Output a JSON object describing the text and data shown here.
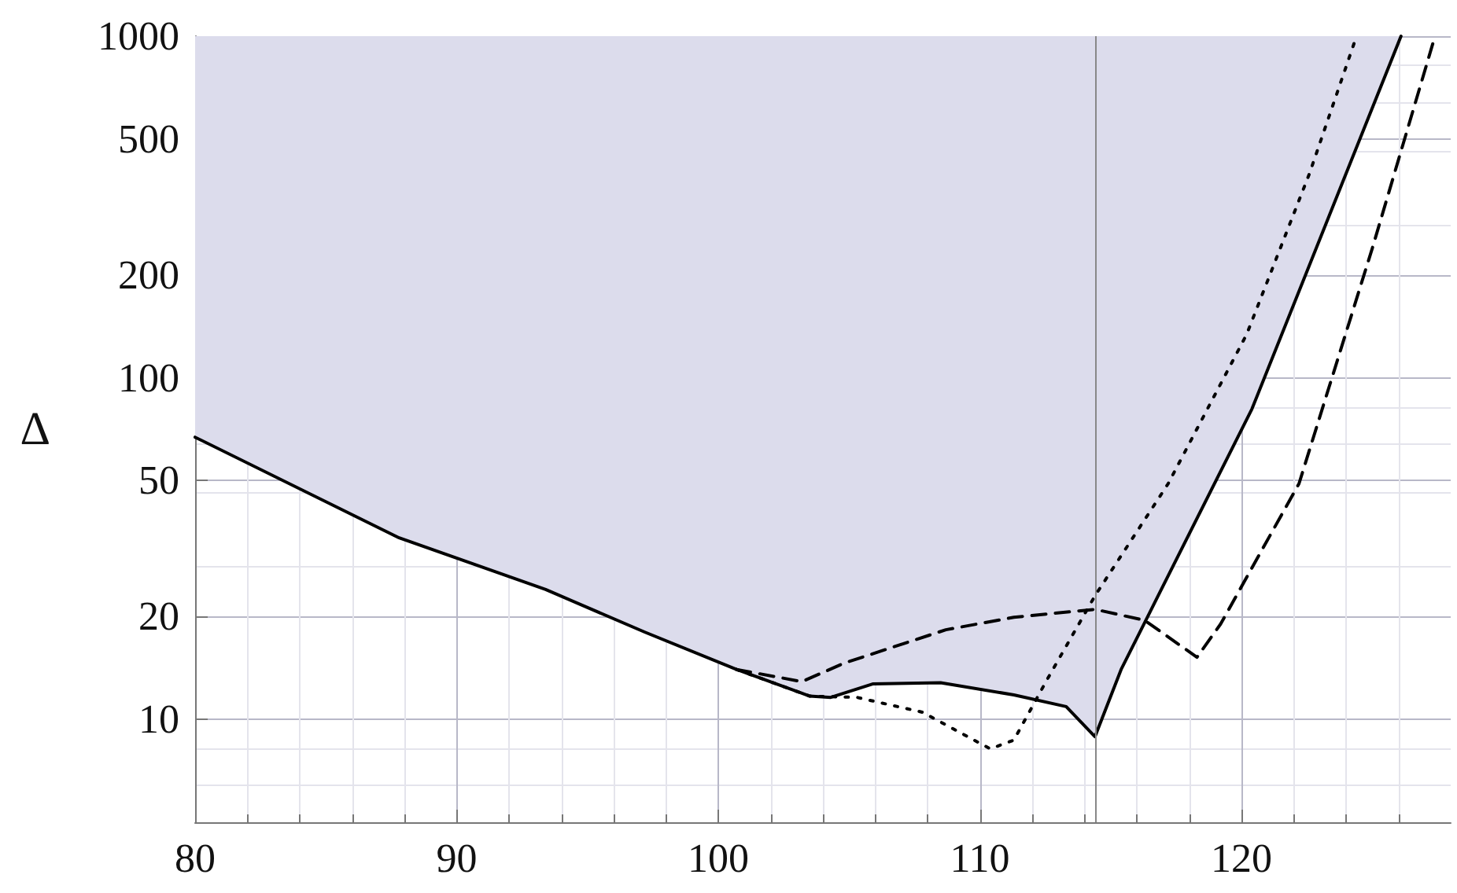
{
  "chart_data": {
    "type": "line",
    "ylabel": "Δ",
    "log": "y",
    "grid": true,
    "xlim": [
      80,
      128
    ],
    "xticks": [
      80,
      90,
      100,
      110,
      120
    ],
    "ylim": [
      5,
      1000
    ],
    "yticks": [
      10,
      20,
      50,
      100,
      200,
      500,
      1000
    ],
    "ref_lines": [
      {
        "axis": "x",
        "value": 114.4,
        "color": "#888888",
        "line_style": "solid"
      }
    ],
    "series": [
      {
        "color": "#000000",
        "line_style": "solid",
        "x": [
          80,
          87.8,
          93.4,
          97.2,
          100.7,
          103.5,
          104.3,
          105.9,
          108.5,
          111.3,
          113.3,
          114.4,
          115.4,
          116.5,
          120.4,
          126.1
        ],
        "values": [
          67,
          34,
          24,
          18,
          14,
          11.7,
          11.6,
          12.7,
          12.8,
          11.8,
          10.9,
          8.9,
          14,
          20.6,
          81,
          1000
        ]
      },
      {
        "type": "line",
        "color": "#000000",
        "line_style": "dashed",
        "x": [
          100.7,
          103.2,
          104.8,
          108.7,
          111.3,
          114.4,
          116.3,
          118.3,
          119.2,
          122.2,
          125,
          127.4
        ],
        "values": [
          14,
          12.9,
          14.6,
          18.3,
          19.9,
          21,
          19.5,
          15.2,
          19,
          49,
          239,
          1000
        ]
      },
      {
        "type": "line",
        "color": "#000000",
        "line_style": "dotted",
        "x": [
          100.7,
          103.5,
          105.3,
          107.8,
          110.4,
          111.3,
          112.6,
          114.4,
          117.2,
          120.2,
          122.6,
          124.4
        ],
        "values": [
          14,
          11.7,
          11.6,
          10.5,
          8.2,
          8.7,
          13.2,
          23,
          49,
          134,
          396,
          1000
        ]
      }
    ]
  }
}
